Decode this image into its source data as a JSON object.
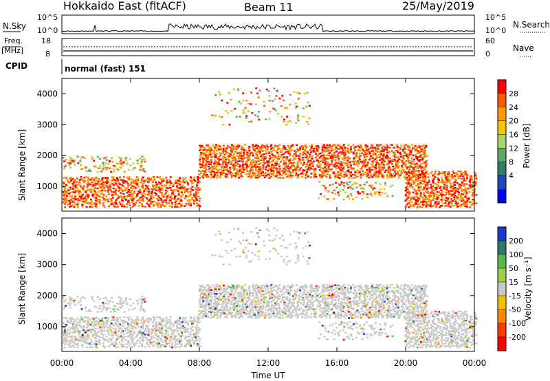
{
  "header": {
    "radar": "Hokkaido East (fitACF)",
    "beam": "Beam 11",
    "date": "25/May/2019"
  },
  "panels": {
    "nsky": {
      "label": "N.Sky",
      "right_label": "N.Search",
      "left_ticks": [
        "10^5",
        "10^0"
      ],
      "right_ticks": [
        "10^5",
        "10^0"
      ]
    },
    "freq": {
      "label_top": "Freq.",
      "label_bottom": "[MHz]",
      "right_label": "Nave",
      "left_ticks": [
        "18",
        "8"
      ],
      "right_ticks": [
        "60",
        "0"
      ]
    },
    "cpid": {
      "label": "CPID",
      "value": "normal (fast) 151"
    }
  },
  "chart_data": [
    {
      "type": "heatmap",
      "name": "power",
      "ylabel": "Slant Range [km]",
      "xlabel": "",
      "colorbar_label": "Power [dB]",
      "colorbar_ticks": [
        "28",
        "24",
        "20",
        "16",
        "12",
        "8",
        "4"
      ],
      "colorbar_colors": [
        "#ff0000",
        "#ff5a00",
        "#ff9a00",
        "#f7c400",
        "#a9d46a",
        "#5ea86a",
        "#2f7d6b",
        "#1f49b8",
        "#0000ff"
      ],
      "yticks": [
        1000,
        2000,
        3000,
        4000
      ],
      "ylim": [
        200,
        4500
      ]
    },
    {
      "type": "heatmap",
      "name": "velocity",
      "ylabel": "Slant Range [km]",
      "xlabel": "Time UT",
      "colorbar_label": "Velocity [m s⁻¹]",
      "colorbar_ticks": [
        "200",
        "100",
        "50",
        "15",
        "-15",
        "-50",
        "-100",
        "-200"
      ],
      "colorbar_colors": [
        "#1a3cc8",
        "#2c7a6a",
        "#59b84a",
        "#9fd04a",
        "#c8c8c8",
        "#f5c000",
        "#ff8a00",
        "#ff3a00",
        "#ff0000"
      ],
      "yticks": [
        1000,
        2000,
        3000,
        4000
      ],
      "ylim": [
        200,
        4500
      ]
    }
  ],
  "xaxis": {
    "ticks": [
      "00:00",
      "04:00",
      "08:00",
      "12:00",
      "16:00",
      "20:00",
      "00:00"
    ],
    "label": "Time UT"
  }
}
